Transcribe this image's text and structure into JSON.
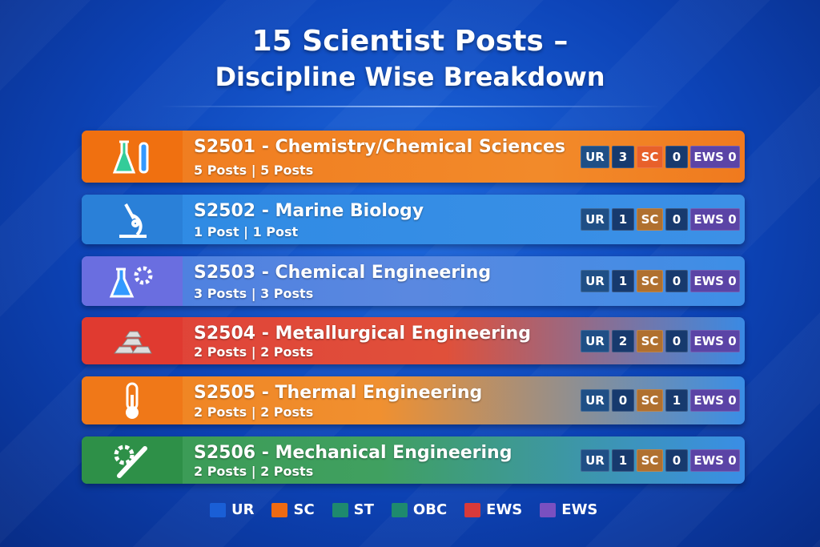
{
  "title": {
    "line1": "15 Scientist Posts –",
    "line2": "Discipline Wise Breakdown"
  },
  "rows": [
    {
      "code": "S2501",
      "discipline": "Chemistry/Chemical Sciences",
      "posts": "5 Posts | 5 Posts",
      "icon": "flask-icon",
      "ur_label": "UR",
      "ur": "3",
      "sc_label": "SC",
      "sc": "0",
      "ews_label": "EWS",
      "ews": "0",
      "color": "#f07a1e"
    },
    {
      "code": "S2502",
      "discipline": "Marine Biology",
      "posts": "1 Post | 1 Post",
      "icon": "microscope-icon",
      "ur_label": "UR",
      "ur": "1",
      "sc_label": "SC",
      "sc": "0",
      "ews_label": "EWS",
      "ews": "0",
      "color": "#2f86e0"
    },
    {
      "code": "S2503",
      "discipline": "Chemical Engineering",
      "posts": "3 Posts | 3 Posts",
      "icon": "flask-gear-icon",
      "ur_label": "UR",
      "ur": "1",
      "sc_label": "SC",
      "sc": "0",
      "ews_label": "EWS",
      "ews": "0",
      "color": "#3d78d8"
    },
    {
      "code": "S2504",
      "discipline": "Metallurgical Engineering",
      "posts": "2 Posts | 2 Posts",
      "icon": "ingots-icon",
      "ur_label": "UR",
      "ur": "2",
      "sc_label": "SC",
      "sc": "0",
      "ews_label": "EWS",
      "ews": "0",
      "color": "#e0453a"
    },
    {
      "code": "S2505",
      "discipline": "Thermal Engineering",
      "posts": "2 Posts | 2 Posts",
      "icon": "thermometer-icon",
      "ur_label": "UR",
      "ur": "0",
      "sc_label": "SC",
      "sc": "1",
      "ews_label": "EWS",
      "ews": "0",
      "color": "#f0801e"
    },
    {
      "code": "S2506",
      "discipline": "Mechanical Engineering",
      "posts": "2 Posts | 2 Posts",
      "icon": "gear-wrench-icon",
      "ur_label": "UR",
      "ur": "1",
      "sc_label": "SC",
      "sc": "0",
      "ews_label": "EWS",
      "ews": "0",
      "color": "#3a9a52"
    }
  ],
  "legend": [
    {
      "label": "UR",
      "color": "#1a5fd6"
    },
    {
      "label": "SC",
      "color": "#ee6a12"
    },
    {
      "label": "ST",
      "color": "#1e8a6e"
    },
    {
      "label": "OBC",
      "color": "#1e8a6e"
    },
    {
      "label": "EWS",
      "color": "#d83a3a"
    },
    {
      "label": "EWS",
      "color": "#7a50c0"
    }
  ]
}
